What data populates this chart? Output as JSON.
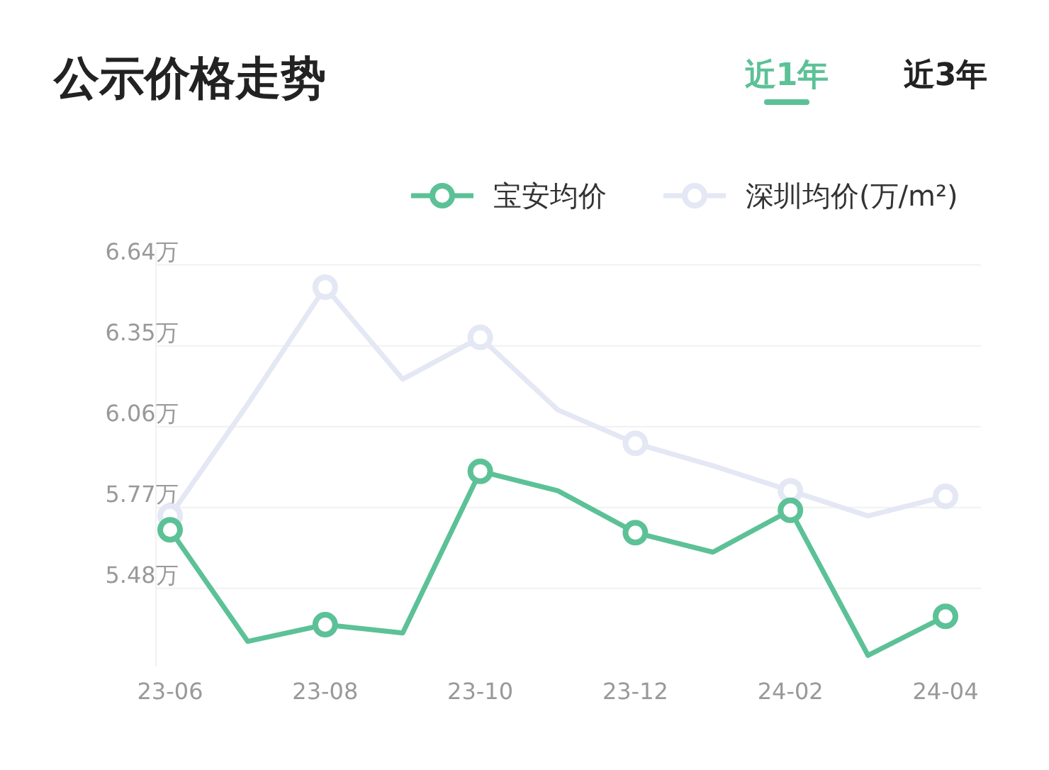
{
  "chart_data": {
    "type": "line",
    "title": "公示价格走势",
    "annotations": [
      "近1年",
      "近3年"
    ],
    "categories": [
      "23-06",
      null,
      "23-08",
      null,
      "23-10",
      null,
      "23-12",
      null,
      "24-02",
      null,
      "24-04"
    ],
    "series": [
      {
        "name": "宝安均价",
        "color": "#5cc197",
        "values": [
          5.69,
          5.29,
          5.35,
          5.32,
          5.9,
          5.83,
          5.68,
          5.61,
          5.76,
          5.24,
          5.38
        ]
      },
      {
        "name": "深圳均价(万/m²)",
        "color": "#e4e7f4",
        "values": [
          5.74,
          6.14,
          6.56,
          6.23,
          6.38,
          6.12,
          6.0,
          5.92,
          5.83,
          5.74,
          5.81
        ]
      }
    ],
    "yticks": [
      {
        "value": 5.48,
        "label": "5.48万"
      },
      {
        "value": 5.77,
        "label": "5.77万"
      },
      {
        "value": 6.06,
        "label": "6.06万"
      },
      {
        "value": 6.35,
        "label": "6.35万"
      },
      {
        "value": 6.64,
        "label": "6.64万"
      }
    ],
    "ylim": [
      5.2,
      6.7
    ],
    "grid": "y",
    "legend": "top right",
    "marker": "circle"
  }
}
